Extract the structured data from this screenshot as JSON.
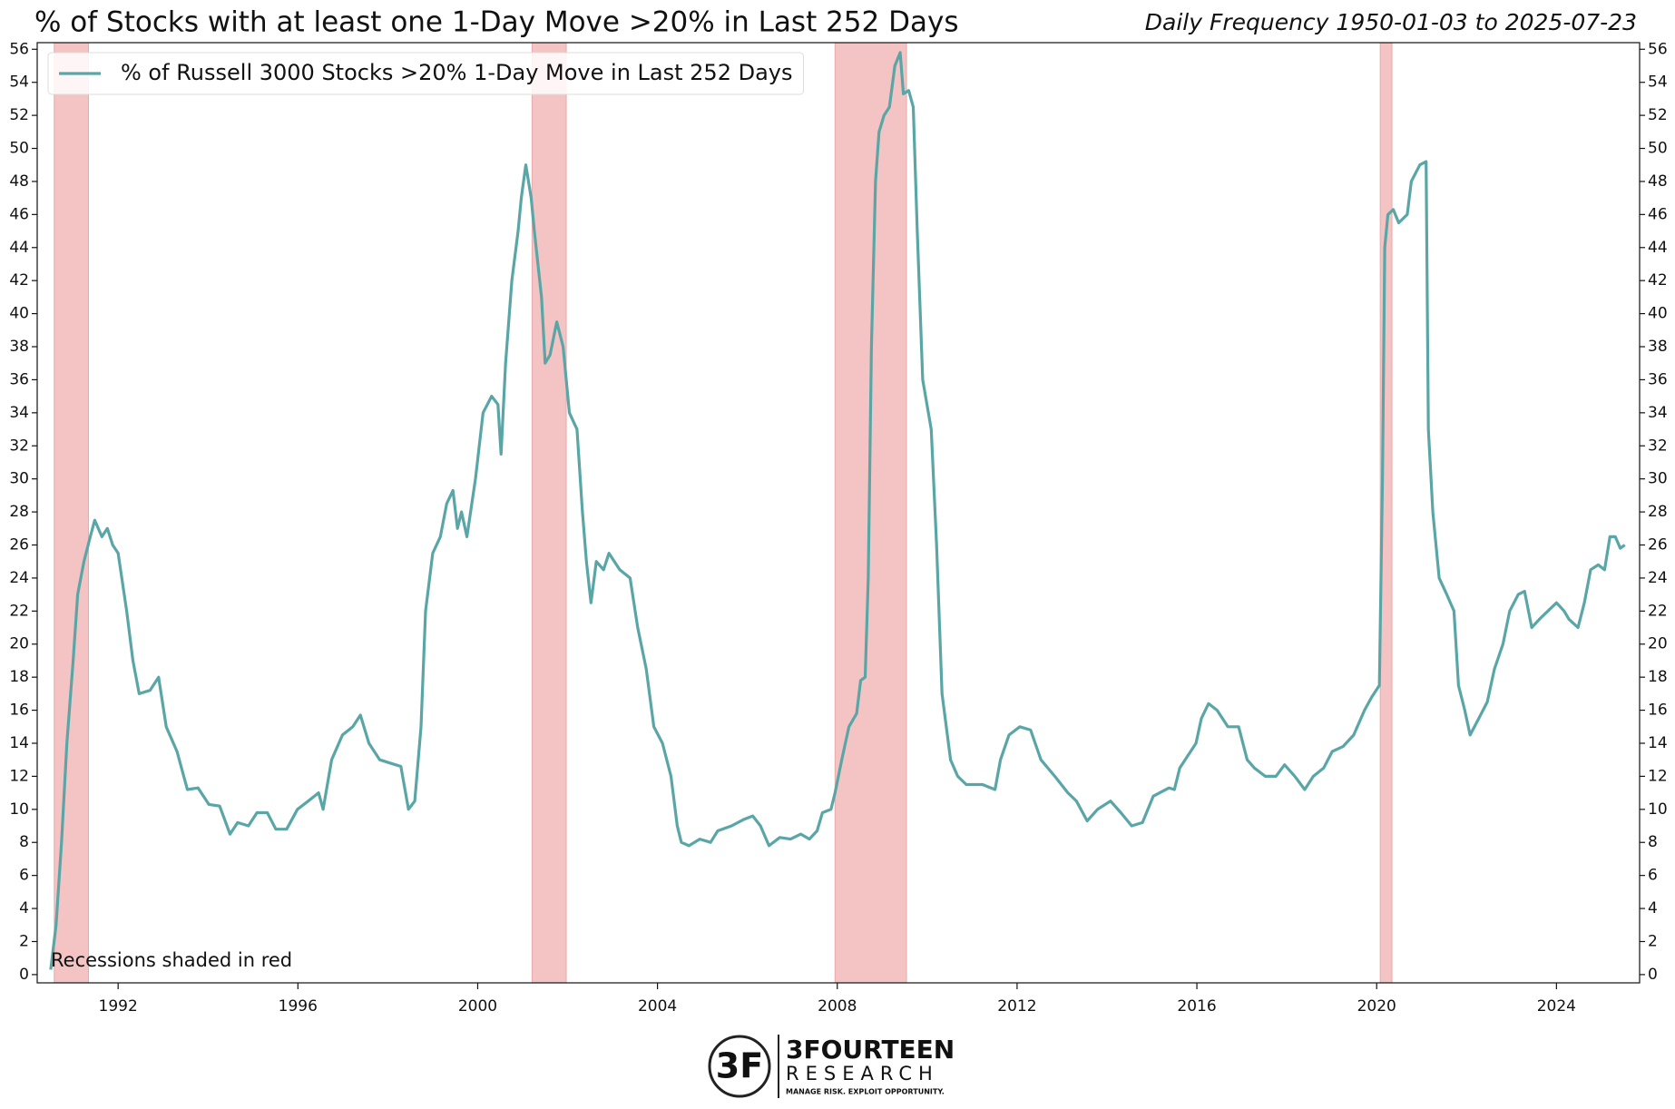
{
  "chart_data": {
    "type": "line",
    "title": "% of Stocks with at least one 1-Day Move >20% in Last 252 Days",
    "subtitle": "Daily Frequency 1950-01-03 to 2025-07-23",
    "annotation": "Recessions shaded in red",
    "recession_color": "#f4c4c4",
    "recessions": [
      [
        1990.58,
        1991.34
      ],
      [
        2001.21,
        2001.97
      ],
      [
        2007.95,
        2009.54
      ],
      [
        2020.08,
        2020.34
      ]
    ],
    "xlim": [
      1990.2,
      2025.85
    ],
    "xticks": [
      1992,
      1996,
      2000,
      2004,
      2008,
      2012,
      2016,
      2020,
      2024
    ],
    "ylim": [
      -0.5,
      56.4
    ],
    "yticks": [
      0,
      2,
      4,
      6,
      8,
      10,
      12,
      14,
      16,
      18,
      20,
      22,
      24,
      26,
      28,
      30,
      32,
      34,
      36,
      38,
      40,
      42,
      44,
      46,
      48,
      50,
      52,
      54,
      56
    ],
    "right_axis_mirror": true,
    "legend": "upper left",
    "x": [
      1990.5,
      1990.62,
      1990.74,
      1990.86,
      1991.0,
      1991.1,
      1991.24,
      1991.38,
      1991.48,
      1991.64,
      1991.76,
      1991.88,
      1992.0,
      1992.19,
      1992.33,
      1992.47,
      1992.71,
      1992.9,
      1993.07,
      1993.31,
      1993.54,
      1993.78,
      1994.02,
      1994.26,
      1994.49,
      1994.66,
      1994.9,
      1995.09,
      1995.32,
      1995.51,
      1995.75,
      1995.99,
      1996.23,
      1996.46,
      1996.56,
      1996.75,
      1996.99,
      1997.22,
      1997.39,
      1997.58,
      1997.82,
      1998.05,
      1998.29,
      1998.46,
      1998.6,
      1998.74,
      1998.84,
      1999.0,
      1999.17,
      1999.31,
      1999.45,
      1999.55,
      1999.64,
      1999.76,
      1999.95,
      2000.12,
      2000.31,
      2000.45,
      2000.52,
      2000.62,
      2000.76,
      2000.9,
      2000.97,
      2001.07,
      2001.19,
      2001.26,
      2001.42,
      2001.5,
      2001.61,
      2001.76,
      2001.9,
      2002.04,
      2002.21,
      2002.33,
      2002.42,
      2002.52,
      2002.64,
      2002.8,
      2002.92,
      2003.16,
      2003.39,
      2003.56,
      2003.75,
      2003.92,
      2004.11,
      2004.3,
      2004.44,
      2004.53,
      2004.7,
      2004.94,
      2005.18,
      2005.34,
      2005.65,
      2005.93,
      2006.12,
      2006.29,
      2006.48,
      2006.72,
      2006.96,
      2007.19,
      2007.38,
      2007.55,
      2007.67,
      2007.86,
      2007.95,
      2008.1,
      2008.26,
      2008.43,
      2008.52,
      2008.62,
      2008.69,
      2008.76,
      2008.85,
      2008.93,
      2009.04,
      2009.16,
      2009.28,
      2009.4,
      2009.47,
      2009.59,
      2009.69,
      2009.78,
      2009.9,
      2010.09,
      2010.21,
      2010.33,
      2010.52,
      2010.68,
      2010.87,
      2011.23,
      2011.51,
      2011.63,
      2011.82,
      2012.06,
      2012.3,
      2012.53,
      2012.84,
      2013.13,
      2013.32,
      2013.56,
      2013.79,
      2014.08,
      2014.31,
      2014.55,
      2014.79,
      2015.03,
      2015.38,
      2015.5,
      2015.62,
      2015.86,
      2015.98,
      2016.1,
      2016.26,
      2016.45,
      2016.69,
      2016.93,
      2017.12,
      2017.28,
      2017.52,
      2017.76,
      2017.95,
      2018.18,
      2018.4,
      2018.59,
      2018.82,
      2019.01,
      2019.25,
      2019.49,
      2019.73,
      2019.89,
      2020.06,
      2020.13,
      2020.18,
      2020.25,
      2020.37,
      2020.49,
      2020.68,
      2020.77,
      2020.96,
      2021.1,
      2021.15,
      2021.25,
      2021.39,
      2021.56,
      2021.72,
      2021.82,
      2021.96,
      2022.08,
      2022.27,
      2022.46,
      2022.62,
      2022.81,
      2022.96,
      2023.15,
      2023.29,
      2023.45,
      2023.62,
      2023.81,
      2024.0,
      2024.17,
      2024.28,
      2024.48,
      2024.62,
      2024.76,
      2024.93,
      2025.07,
      2025.19,
      2025.31,
      2025.42,
      2025.52
    ],
    "series": [
      {
        "name": "% of Russell 3000 Stocks >20% 1-Day Move in Last 252 Days",
        "color": "#5aa6a6",
        "values": [
          0.3,
          3,
          8,
          14,
          19,
          23,
          25,
          26.5,
          27.5,
          26.5,
          27,
          26,
          25.5,
          22,
          19,
          17,
          17.2,
          18,
          15,
          13.5,
          11.2,
          11.3,
          10.3,
          10.2,
          8.5,
          9.2,
          9,
          9.8,
          9.8,
          8.8,
          8.8,
          10,
          10.5,
          11,
          10,
          13,
          14.5,
          15,
          15.7,
          14,
          13,
          12.8,
          12.6,
          10,
          10.5,
          15,
          22,
          25.5,
          26.5,
          28.5,
          29.3,
          27,
          28,
          26.5,
          30,
          34,
          35,
          34.5,
          31.5,
          37,
          42,
          45,
          47,
          49,
          47,
          45,
          41,
          37,
          37.5,
          39.5,
          38,
          34,
          33,
          28,
          25,
          22.5,
          25,
          24.5,
          25.5,
          24.5,
          24,
          21,
          18.5,
          15,
          14,
          12,
          9,
          8,
          7.8,
          8.2,
          8,
          8.7,
          9,
          9.4,
          9.6,
          9,
          7.8,
          8.3,
          8.2,
          8.5,
          8.2,
          8.7,
          9.8,
          10,
          11,
          13,
          15,
          15.8,
          17.8,
          18,
          24,
          38,
          48,
          51,
          52,
          52.5,
          55,
          55.8,
          53.3,
          53.5,
          52.5,
          45,
          36,
          33,
          26,
          17,
          13,
          12,
          11.5,
          11.5,
          11.2,
          13,
          14.5,
          15,
          14.8,
          13,
          12,
          11,
          10.5,
          9.3,
          10,
          10.5,
          9.8,
          9,
          9.2,
          10.8,
          11.3,
          11.2,
          12.5,
          13.5,
          14,
          15.5,
          16.4,
          16,
          15,
          15,
          13,
          12.5,
          12,
          12,
          12.7,
          12,
          11.2,
          12,
          12.5,
          13.5,
          13.8,
          14.5,
          16,
          16.8,
          17.5,
          30,
          44,
          46,
          46.3,
          45.5,
          46,
          48,
          49,
          49.2,
          33,
          28,
          24,
          23,
          22,
          17.5,
          16,
          14.5,
          15.5,
          16.5,
          18.5,
          20,
          22,
          23,
          23.2,
          21,
          21.5,
          22,
          22.5,
          22,
          21.5,
          21,
          22.5,
          24.5,
          24.8,
          24.5,
          26.5,
          26.5,
          25.8,
          26
        ]
      }
    ]
  },
  "logo": {
    "mark": "3F",
    "name": "3FOURTEEN",
    "sub": "RESEARCH",
    "tagline": "MANAGE RISK. EXPLOIT OPPORTUNITY."
  }
}
